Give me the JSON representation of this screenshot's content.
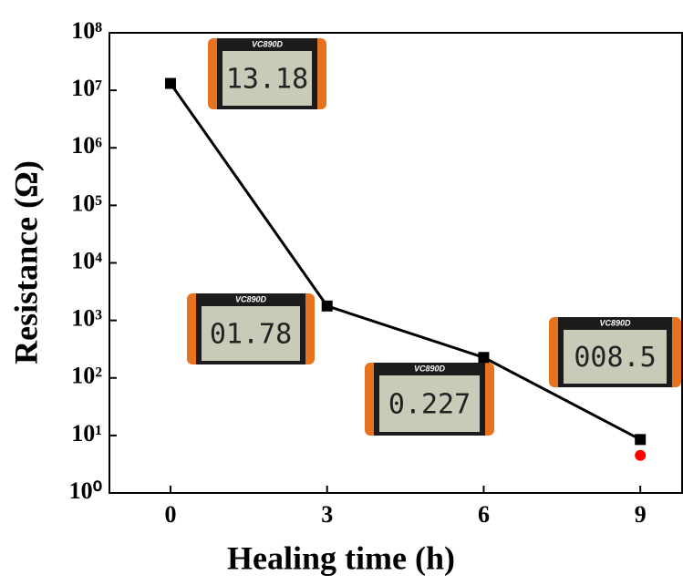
{
  "chart_data": {
    "type": "line",
    "x_label": "Healing time (h)",
    "y_label": "Resistance (Ω)",
    "x": [
      0,
      3,
      6,
      9
    ],
    "series": [
      {
        "color": "#000000",
        "marker": "square",
        "values": [
          13180000,
          1780,
          227,
          8.5
        ]
      },
      {
        "color": "#ff0000",
        "marker": "circle",
        "values": [
          null,
          null,
          null,
          4.5
        ]
      }
    ],
    "xlim": [
      -1.17,
      9.8
    ],
    "xticks": [
      0,
      3,
      6,
      9
    ],
    "ylim": [
      1,
      100000000
    ],
    "yscale": "log",
    "yticks": [
      {
        "value": 1,
        "label": "10⁰"
      },
      {
        "value": 10,
        "label": "10¹"
      },
      {
        "value": 100,
        "label": "10²"
      },
      {
        "value": 1000,
        "label": "10³"
      },
      {
        "value": 10000,
        "label": "10⁴"
      },
      {
        "value": 100000,
        "label": "10⁵"
      },
      {
        "value": 1000000,
        "label": "10⁶"
      },
      {
        "value": 10000000,
        "label": "10⁷"
      },
      {
        "value": 100000000,
        "label": "10⁸"
      }
    ],
    "device_label": "VC890D",
    "annotations": [
      "13.18",
      "01.78",
      "0.227",
      "008.5"
    ]
  }
}
